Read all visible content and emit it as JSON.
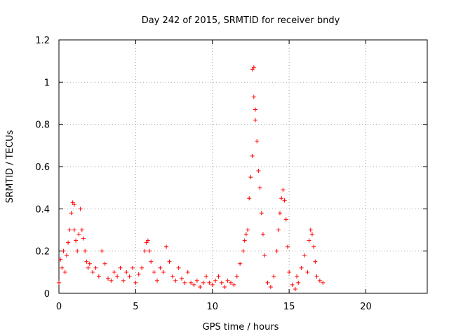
{
  "chart_data": {
    "type": "scatter",
    "title": "Day 242 of 2015, SRMTID for receiver bndy",
    "xlabel": "GPS time / hours",
    "ylabel": "SRMTID / TECUs",
    "xlim": [
      0,
      24
    ],
    "ylim": [
      0,
      1.2
    ],
    "xticks": [
      0,
      5,
      10,
      15,
      20
    ],
    "xtick_labels": [
      "0",
      "5",
      "10",
      "15",
      "20"
    ],
    "yticks": [
      0,
      0.2,
      0.4,
      0.6,
      0.8,
      1,
      1.2
    ],
    "ytick_labels": [
      "0",
      "0.2",
      "0.4",
      "0.6",
      "0.8",
      "1",
      "1.2"
    ],
    "grid": true,
    "marker": "+",
    "color": "#ff0000",
    "series": [
      {
        "name": "SRMTID",
        "x": [
          0.0,
          0.1,
          0.2,
          0.3,
          0.4,
          0.5,
          0.6,
          0.7,
          0.8,
          0.9,
          1.0,
          1.0,
          1.1,
          1.2,
          1.3,
          1.4,
          1.5,
          1.6,
          1.7,
          1.8,
          1.9,
          2.0,
          2.2,
          2.4,
          2.6,
          2.8,
          3.0,
          3.2,
          3.4,
          3.6,
          3.8,
          4.0,
          4.2,
          4.4,
          4.6,
          4.8,
          5.0,
          5.2,
          5.4,
          5.6,
          5.7,
          5.8,
          5.9,
          6.0,
          6.2,
          6.4,
          6.6,
          6.8,
          7.0,
          7.2,
          7.4,
          7.6,
          7.8,
          8.0,
          8.2,
          8.4,
          8.6,
          8.8,
          9.0,
          9.2,
          9.4,
          9.6,
          9.8,
          10.0,
          10.2,
          10.4,
          10.6,
          10.8,
          11.0,
          11.2,
          11.4,
          11.6,
          11.8,
          12.0,
          12.1,
          12.2,
          12.3,
          12.4,
          12.5,
          12.6,
          12.6,
          12.7,
          12.7,
          12.8,
          12.8,
          12.9,
          13.0,
          13.1,
          13.2,
          13.3,
          13.4,
          13.6,
          13.8,
          14.0,
          14.2,
          14.3,
          14.4,
          14.5,
          14.6,
          14.7,
          14.8,
          14.9,
          15.0,
          15.2,
          15.4,
          15.5,
          15.6,
          15.8,
          16.0,
          16.2,
          16.3,
          16.4,
          16.5,
          16.6,
          16.7,
          16.8,
          17.0,
          17.2
        ],
        "y": [
          0.05,
          0.16,
          0.12,
          0.2,
          0.1,
          0.18,
          0.24,
          0.3,
          0.38,
          0.43,
          0.42,
          0.3,
          0.25,
          0.2,
          0.28,
          0.4,
          0.3,
          0.26,
          0.2,
          0.15,
          0.12,
          0.14,
          0.1,
          0.12,
          0.08,
          0.2,
          0.14,
          0.07,
          0.06,
          0.1,
          0.08,
          0.12,
          0.06,
          0.1,
          0.08,
          0.12,
          0.05,
          0.09,
          0.12,
          0.2,
          0.24,
          0.25,
          0.2,
          0.15,
          0.1,
          0.06,
          0.12,
          0.1,
          0.22,
          0.15,
          0.08,
          0.06,
          0.12,
          0.07,
          0.05,
          0.1,
          0.05,
          0.04,
          0.06,
          0.03,
          0.05,
          0.08,
          0.05,
          0.04,
          0.06,
          0.08,
          0.05,
          0.03,
          0.06,
          0.05,
          0.04,
          0.08,
          0.14,
          0.2,
          0.25,
          0.28,
          0.3,
          0.45,
          0.55,
          0.65,
          1.06,
          1.07,
          0.93,
          0.87,
          0.82,
          0.72,
          0.58,
          0.5,
          0.38,
          0.28,
          0.18,
          0.05,
          0.03,
          0.08,
          0.2,
          0.3,
          0.38,
          0.45,
          0.49,
          0.44,
          0.35,
          0.22,
          0.1,
          0.04,
          0.02,
          0.08,
          0.05,
          0.12,
          0.18,
          0.1,
          0.25,
          0.3,
          0.28,
          0.22,
          0.15,
          0.08,
          0.06,
          0.05
        ]
      }
    ]
  }
}
